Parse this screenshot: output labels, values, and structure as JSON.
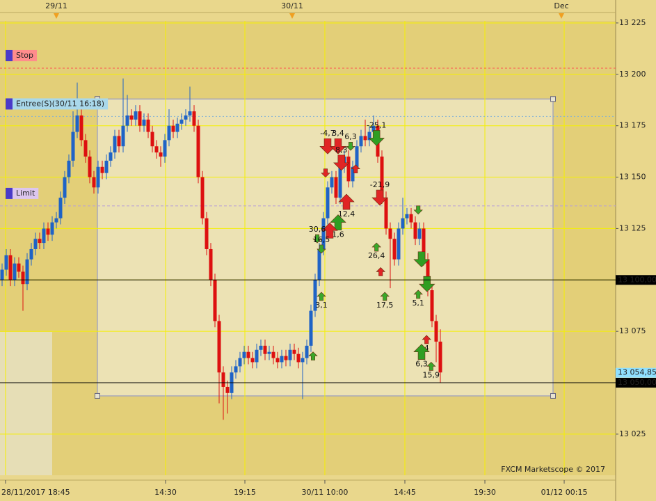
{
  "chart_data": {
    "type": "candlestick",
    "xlim": [
      0,
      147.5
    ],
    "ylim": [
      13005,
      13226
    ],
    "xticks": [
      {
        "value": 1.33,
        "label": "28/11/2017 18:45"
      },
      {
        "value": 39.67,
        "label": "14:30"
      },
      {
        "value": 58.67,
        "label": "19:15"
      },
      {
        "value": 77.83,
        "label": "30/11 10:00"
      },
      {
        "value": 97,
        "label": "14:45"
      },
      {
        "value": 116.17,
        "label": "19:30"
      },
      {
        "value": 135.17,
        "label": "01/12 00:15"
      }
    ],
    "yticks": [
      {
        "value": 13025,
        "label": "13 025"
      },
      {
        "value": 13050,
        "label": "13 050"
      },
      {
        "value": 13075,
        "label": "13 075"
      },
      {
        "value": 13100,
        "label": "13 100"
      },
      {
        "value": 13125,
        "label": "13 125"
      },
      {
        "value": 13150,
        "label": "13 150"
      },
      {
        "value": 13175,
        "label": "13 175"
      },
      {
        "value": 13200,
        "label": "13 200"
      },
      {
        "value": 13225,
        "label": "13 225"
      }
    ],
    "top_markers": [
      {
        "value": 13.5,
        "label": "29/11"
      },
      {
        "value": 70,
        "label": "30/11"
      },
      {
        "value": 134.5,
        "label": "Dec"
      }
    ],
    "grid": true,
    "up_color": "#1f63c6",
    "down_color": "#dd1010",
    "open": [
      13100,
      13105,
      13112,
      13100,
      13108,
      13104,
      13098,
      13110,
      13115,
      13120,
      13118,
      13125,
      13122,
      13128,
      13130,
      13140,
      13150,
      13158,
      13172,
      13180,
      13168,
      13160,
      13150,
      13145,
      13155,
      13152,
      13158,
      13162,
      13170,
      13165,
      13175,
      13180,
      13178,
      13182,
      13175,
      13178,
      13172,
      13165,
      13162,
      13160,
      13168,
      13175,
      13172,
      13176,
      13178,
      13180,
      13182,
      13175,
      13150,
      13130,
      13115,
      13100,
      13080,
      13055,
      13048,
      13045,
      13055,
      13058,
      13062,
      13065,
      13062,
      13060,
      13066,
      13068,
      13064,
      13065,
      13062,
      13060,
      13063,
      13061,
      13066,
      13064,
      13060,
      13062,
      13068,
      13085,
      13100,
      13115,
      13130,
      13145,
      13150,
      13140,
      13155,
      13160,
      13148,
      13155,
      13165,
      13170,
      13168,
      13172,
      13175,
      13160,
      13140,
      13125,
      13120,
      13110,
      13125,
      13130,
      13132,
      13128,
      13120,
      13125,
      13110,
      13095,
      13080,
      13070
    ],
    "high": [
      13108,
      13115,
      13115,
      13111,
      13111,
      13107,
      13113,
      13118,
      13123,
      13123,
      13128,
      13128,
      13131,
      13133,
      13143,
      13153,
      13161,
      13182,
      13196,
      13183,
      13171,
      13163,
      13153,
      13158,
      13158,
      13161,
      13165,
      13173,
      13173,
      13198,
      13190,
      13183,
      13185,
      13185,
      13181,
      13181,
      13175,
      13168,
      13165,
      13171,
      13183,
      13178,
      13179,
      13181,
      13183,
      13194,
      13185,
      13178,
      13153,
      13133,
      13118,
      13103,
      13083,
      13058,
      13051,
      13058,
      13061,
      13065,
      13068,
      13068,
      13065,
      13069,
      13071,
      13071,
      13068,
      13068,
      13065,
      13066,
      13066,
      13069,
      13069,
      13067,
      13065,
      13071,
      13088,
      13103,
      13118,
      13133,
      13148,
      13153,
      13153,
      13158,
      13163,
      13163,
      13158,
      13168,
      13173,
      13178,
      13175,
      13180,
      13178,
      13163,
      13143,
      13128,
      13123,
      13128,
      13140,
      13135,
      13135,
      13131,
      13128,
      13128,
      13113,
      13098,
      13083,
      13076
    ],
    "low": [
      13097,
      13102,
      13097,
      13097,
      13101,
      13085,
      13095,
      13107,
      13112,
      13115,
      13115,
      13119,
      13119,
      13125,
      13127,
      13137,
      13147,
      13155,
      13169,
      13165,
      13157,
      13147,
      13142,
      13142,
      13149,
      13149,
      13155,
      13159,
      13162,
      13162,
      13172,
      13175,
      13175,
      13172,
      13172,
      13169,
      13162,
      13159,
      13155,
      13157,
      13165,
      13169,
      13169,
      13173,
      13175,
      13177,
      13172,
      13147,
      13127,
      13112,
      13097,
      13077,
      13040,
      13032,
      13035,
      13042,
      13052,
      13055,
      13059,
      13059,
      13057,
      13057,
      13063,
      13061,
      13061,
      13059,
      13057,
      13057,
      13058,
      13058,
      13061,
      13057,
      13042,
      13059,
      13065,
      13082,
      13097,
      13112,
      13127,
      13142,
      13137,
      13137,
      13152,
      13145,
      13145,
      13152,
      13162,
      13165,
      13165,
      13169,
      13157,
      13137,
      13122,
      13096,
      13107,
      13107,
      13122,
      13127,
      13125,
      13117,
      13117,
      13107,
      13092,
      13077,
      13060,
      13050
    ],
    "close": [
      13105,
      13112,
      13100,
      13108,
      13104,
      13098,
      13110,
      13115,
      13120,
      13118,
      13125,
      13122,
      13128,
      13130,
      13140,
      13150,
      13158,
      13172,
      13180,
      13168,
      13160,
      13150,
      13145,
      13155,
      13152,
      13158,
      13162,
      13170,
      13165,
      13175,
      13180,
      13178,
      13182,
      13175,
      13178,
      13172,
      13165,
      13162,
      13160,
      13168,
      13175,
      13172,
      13176,
      13178,
      13180,
      13182,
      13175,
      13150,
      13130,
      13115,
      13100,
      13080,
      13055,
      13048,
      13045,
      13055,
      13058,
      13062,
      13065,
      13062,
      13060,
      13066,
      13068,
      13064,
      13065,
      13062,
      13060,
      13063,
      13061,
      13066,
      13064,
      13060,
      13062,
      13068,
      13085,
      13100,
      13115,
      13130,
      13145,
      13150,
      13140,
      13155,
      13160,
      13148,
      13155,
      13165,
      13170,
      13168,
      13172,
      13175,
      13160,
      13140,
      13125,
      13120,
      13110,
      13125,
      13130,
      13132,
      13128,
      13120,
      13125,
      13110,
      13095,
      13080,
      13070,
      13055
    ],
    "levels": [
      {
        "name": "Stop",
        "value": 13203,
        "color": "#ff5050",
        "tag_color": "#ff8c8c",
        "text_color": "#c80000",
        "dash": "3,3"
      },
      {
        "name": "Entree(S)(30/11 16:18)",
        "value": 13179.5,
        "color": "#7fb0d8",
        "tag_color": "#a9d8ea",
        "text_color": "#3a6aa8",
        "dash": "2,3"
      },
      {
        "name": "Limit",
        "value": 13136,
        "color": "#b9a0d6",
        "tag_color": "#dcc6ee",
        "text_color": "#9a6ac8",
        "dash": "4,3"
      }
    ],
    "price_lines": [
      {
        "value": 13100,
        "label": "13 100,00"
      },
      {
        "value": 13050,
        "label": "13 050,00"
      }
    ],
    "current_price": {
      "value": 13054.85,
      "label": "13 054,85"
    },
    "order_box": {
      "x": [
        23.33,
        132.5
      ],
      "y": [
        13043.6,
        13188
      ]
    },
    "signals": [
      {
        "bar": 78.5,
        "price": 13165,
        "dir": "down",
        "size": "big",
        "color": "#e02525",
        "label": "-4,7"
      },
      {
        "bar": 81,
        "price": 13165,
        "dir": "down",
        "size": "big",
        "color": "#e02525",
        "label": "3,4"
      },
      {
        "bar": 84,
        "price": 13165,
        "dir": "down",
        "size": "small",
        "color": "#3aa82a",
        "label": "6,3"
      },
      {
        "bar": 81.8,
        "price": 13157,
        "dir": "down",
        "size": "big",
        "color": "#e02525",
        "label": "8,3"
      },
      {
        "bar": 78,
        "price": 13152,
        "dir": "down",
        "size": "small",
        "color": "#e02525"
      },
      {
        "bar": 85.2,
        "price": 13154,
        "dir": "up",
        "size": "small",
        "color": "#e02525"
      },
      {
        "bar": 90.2,
        "price": 13169,
        "dir": "down",
        "size": "big",
        "color": "#2f9e22",
        "label": "-25,1"
      },
      {
        "bar": 91,
        "price": 13140,
        "dir": "down",
        "size": "big",
        "color": "#e02525",
        "label": "-21,9"
      },
      {
        "bar": 83,
        "price": 13138,
        "dir": "up",
        "size": "big",
        "color": "#e02525",
        "label": "12,4"
      },
      {
        "bar": 81,
        "price": 13128,
        "dir": "up",
        "size": "big",
        "color": "#2f9e22",
        "label": "1,6"
      },
      {
        "bar": 79,
        "price": 13124,
        "dir": "up",
        "size": "big",
        "color": "#e02525"
      },
      {
        "bar": 76,
        "price": 13120,
        "dir": "down",
        "size": "small",
        "color": "#3aa82a",
        "label": "30,6"
      },
      {
        "bar": 77,
        "price": 13115,
        "dir": "down",
        "size": "small",
        "color": "#3aa82a",
        "label": "16,5"
      },
      {
        "bar": 90.2,
        "price": 13116,
        "dir": "up",
        "size": "small",
        "color": "#3aa82a",
        "label": "26,4"
      },
      {
        "bar": 91.2,
        "price": 13104,
        "dir": "up",
        "size": "small",
        "color": "#e02525"
      },
      {
        "bar": 77,
        "price": 13092,
        "dir": "up",
        "size": "small",
        "color": "#3aa82a",
        "label": "3,1"
      },
      {
        "bar": 92.2,
        "price": 13092,
        "dir": "up",
        "size": "small",
        "color": "#3aa82a",
        "label": "17,5"
      },
      {
        "bar": 100.2,
        "price": 13134,
        "dir": "down",
        "size": "small",
        "color": "#3aa82a"
      },
      {
        "bar": 101,
        "price": 13110,
        "dir": "down",
        "size": "big",
        "color": "#2f9e22"
      },
      {
        "bar": 102.3,
        "price": 13098,
        "dir": "down",
        "size": "big",
        "color": "#2f9e22"
      },
      {
        "bar": 100.2,
        "price": 13093,
        "dir": "up",
        "size": "small",
        "color": "#3aa82a",
        "label": "5,1"
      },
      {
        "bar": 102.2,
        "price": 13071,
        "dir": "up",
        "size": "small",
        "color": "#e02525",
        "label": "4"
      },
      {
        "bar": 101,
        "price": 13065,
        "dir": "up",
        "size": "big",
        "color": "#2f9e22",
        "label": "6,3"
      },
      {
        "bar": 103.3,
        "price": 13058,
        "dir": "up",
        "size": "small",
        "color": "#3aa82a",
        "label": "15,9"
      },
      {
        "bar": 75,
        "price": 13063,
        "dir": "up",
        "size": "small",
        "color": "#3aa82a"
      }
    ],
    "watermark": "FXCM Marketscope © 2017"
  }
}
